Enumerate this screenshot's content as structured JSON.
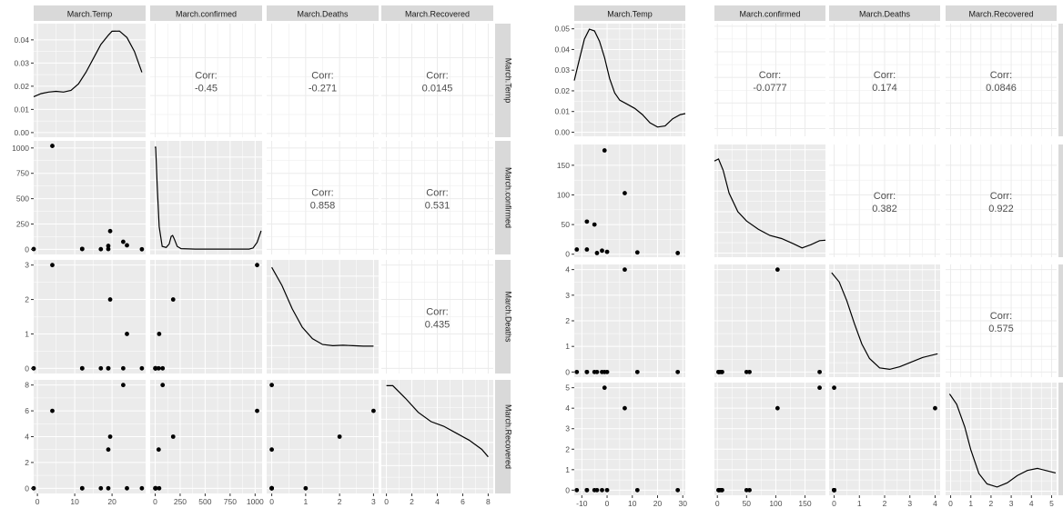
{
  "chart_data": [
    {
      "type": "scatter-matrix",
      "variables": [
        "March.Temp",
        "March.confirmed",
        "March.Deaths",
        "March.Recovered"
      ],
      "panel_bg": "#ebebeb",
      "strip_bg": "#d9d9d9",
      "grid_color": "#ffffff",
      "axes": [
        {
          "range": [
            -1,
            29
          ],
          "ticks": [
            0,
            10,
            20
          ],
          "tick_labels": [
            "0",
            "10",
            "20"
          ]
        },
        {
          "range": [
            -50,
            1070
          ],
          "ticks": [
            0,
            250,
            500,
            750,
            1000
          ],
          "tick_labels": [
            "0",
            "250",
            "500",
            "750",
            "1000"
          ]
        },
        {
          "range": [
            -0.15,
            3.15
          ],
          "ticks": [
            0,
            1,
            2,
            3
          ],
          "tick_labels": [
            "0",
            "1",
            "2",
            "3"
          ]
        },
        {
          "range": [
            -0.4,
            8.4
          ],
          "ticks": [
            0,
            2,
            4,
            6,
            8
          ],
          "tick_labels": [
            "0",
            "2",
            "4",
            "6",
            "8"
          ]
        }
      ],
      "density_ylim": [
        -0.002,
        0.047
      ],
      "density_yticks": [
        0,
        0.01,
        0.02,
        0.03,
        0.04
      ],
      "density_ytick_labels": [
        "0.00",
        "0.01",
        "0.02",
        "0.03",
        "0.04"
      ],
      "densities": [
        [
          [
            -1,
            0.0155
          ],
          [
            1,
            0.0168
          ],
          [
            3,
            0.0175
          ],
          [
            5,
            0.0178
          ],
          [
            7,
            0.0175
          ],
          [
            9,
            0.0182
          ],
          [
            11,
            0.021
          ],
          [
            13,
            0.026
          ],
          [
            15,
            0.032
          ],
          [
            17,
            0.038
          ],
          [
            19,
            0.042
          ],
          [
            20,
            0.0437
          ],
          [
            22,
            0.0438
          ],
          [
            24,
            0.041
          ],
          [
            26,
            0.035
          ],
          [
            28,
            0.026
          ]
        ],
        [
          [
            0,
            0.044
          ],
          [
            5,
            0.0445
          ],
          [
            20,
            0.028
          ],
          [
            40,
            0.01
          ],
          [
            70,
            0.0015
          ],
          [
            110,
            0.001
          ],
          [
            140,
            0.0025
          ],
          [
            160,
            0.0058
          ],
          [
            175,
            0.0062
          ],
          [
            190,
            0.0048
          ],
          [
            220,
            0.0015
          ],
          [
            260,
            0.0005
          ],
          [
            400,
            0.0003
          ],
          [
            700,
            0.0003
          ],
          [
            940,
            0.0003
          ],
          [
            980,
            0.0008
          ],
          [
            1020,
            0.0032
          ],
          [
            1060,
            0.0082
          ]
        ],
        [
          [
            0,
            0.0438
          ],
          [
            0.3,
            0.036
          ],
          [
            0.6,
            0.026
          ],
          [
            0.9,
            0.018
          ],
          [
            1.2,
            0.013
          ],
          [
            1.5,
            0.0105
          ],
          [
            1.8,
            0.01
          ],
          [
            2.1,
            0.0102
          ],
          [
            2.4,
            0.01
          ],
          [
            2.7,
            0.0098
          ],
          [
            3,
            0.0098
          ]
        ],
        [
          [
            0,
            0.0445
          ],
          [
            0.5,
            0.0445
          ],
          [
            1.5,
            0.039
          ],
          [
            2.5,
            0.033
          ],
          [
            3.5,
            0.029
          ],
          [
            4.5,
            0.027
          ],
          [
            5.5,
            0.024
          ],
          [
            6.5,
            0.021
          ],
          [
            7.5,
            0.017
          ],
          [
            8,
            0.0138
          ]
        ]
      ],
      "points": [
        {
          "v1": 28,
          "v2": 1,
          "v3": 0,
          "v4": 0
        },
        {
          "v1": 4,
          "v2": 1020,
          "v3": 3,
          "v4": 6
        },
        {
          "v1": 12,
          "v2": 5,
          "v3": 0,
          "v4": 0
        },
        {
          "v1": 17,
          "v2": 2,
          "v3": 0,
          "v4": 0
        },
        {
          "v1": 19,
          "v2": 35,
          "v3": 0,
          "v4": 3
        },
        {
          "v1": 19.5,
          "v2": 180,
          "v3": 2,
          "v4": 4
        },
        {
          "v1": 23,
          "v2": 75,
          "v3": 0,
          "v4": 8
        },
        {
          "v1": 24,
          "v2": 40,
          "v3": 1,
          "v4": 0
        },
        {
          "v1": -1,
          "v2": 3,
          "v3": 0,
          "v4": 0
        },
        {
          "v1": 12,
          "v2": 3,
          "v3": 0,
          "v4": 0
        },
        {
          "v1": 19,
          "v2": 3,
          "v3": 0,
          "v4": 0
        }
      ],
      "correlations": [
        {
          "row": 0,
          "col": 1,
          "label": "Corr:",
          "value": "-0.45"
        },
        {
          "row": 0,
          "col": 2,
          "label": "Corr:",
          "value": "-0.271"
        },
        {
          "row": 0,
          "col": 3,
          "label": "Corr:",
          "value": "0.0145"
        },
        {
          "row": 1,
          "col": 2,
          "label": "Corr:",
          "value": "0.858"
        },
        {
          "row": 1,
          "col": 3,
          "label": "Corr:",
          "value": "0.531"
        },
        {
          "row": 2,
          "col": 3,
          "label": "Corr:",
          "value": "0.435"
        }
      ]
    },
    {
      "type": "scatter-matrix",
      "variables": [
        "March.Temp",
        "March.confirmed",
        "March.Deaths",
        "March.Recovered"
      ],
      "panel_bg": "#ebebeb",
      "strip_bg": "#d9d9d9",
      "grid_color": "#ffffff",
      "axes": [
        {
          "range": [
            -13,
            31
          ],
          "ticks": [
            -10,
            0,
            10,
            20,
            30
          ],
          "tick_labels": [
            "-10",
            "0",
            "10",
            "20",
            "30"
          ]
        },
        {
          "range": [
            -5,
            185
          ],
          "ticks": [
            0,
            50,
            100,
            150
          ],
          "tick_labels": [
            "0",
            "50",
            "100",
            "150"
          ]
        },
        {
          "range": [
            -0.2,
            4.2
          ],
          "ticks": [
            0,
            1,
            2,
            3,
            4
          ],
          "tick_labels": [
            "0",
            "1",
            "2",
            "3",
            "4"
          ]
        },
        {
          "range": [
            -0.25,
            5.25
          ],
          "ticks": [
            0,
            1,
            2,
            3,
            4,
            5
          ],
          "tick_labels": [
            "0",
            "1",
            "2",
            "3",
            "4",
            "5"
          ]
        }
      ],
      "density_ylim": [
        -0.002,
        0.0525
      ],
      "density_yticks": [
        0,
        0.01,
        0.02,
        0.03,
        0.04,
        0.05
      ],
      "density_ytick_labels": [
        "0.00",
        "0.01",
        "0.02",
        "0.03",
        "0.04",
        "0.05"
      ],
      "densities": [
        [
          [
            -13,
            0.025
          ],
          [
            -11,
            0.035
          ],
          [
            -9,
            0.045
          ],
          [
            -7,
            0.0498
          ],
          [
            -5,
            0.049
          ],
          [
            -3,
            0.044
          ],
          [
            -1,
            0.036
          ],
          [
            1,
            0.026
          ],
          [
            3,
            0.019
          ],
          [
            5,
            0.0155
          ],
          [
            8,
            0.0135
          ],
          [
            11,
            0.0115
          ],
          [
            14,
            0.0085
          ],
          [
            17,
            0.0045
          ],
          [
            20,
            0.0025
          ],
          [
            23,
            0.003
          ],
          [
            26,
            0.0065
          ],
          [
            29,
            0.0085
          ],
          [
            31,
            0.009
          ]
        ],
        [
          [
            -5,
            0.0445
          ],
          [
            2,
            0.0455
          ],
          [
            10,
            0.04
          ],
          [
            20,
            0.029
          ],
          [
            35,
            0.02
          ],
          [
            50,
            0.0155
          ],
          [
            70,
            0.0115
          ],
          [
            90,
            0.0085
          ],
          [
            110,
            0.007
          ],
          [
            130,
            0.0045
          ],
          [
            145,
            0.0025
          ],
          [
            160,
            0.004
          ],
          [
            175,
            0.006
          ],
          [
            185,
            0.0062
          ]
        ],
        [
          [
            -0.1,
            0.0485
          ],
          [
            0.2,
            0.044
          ],
          [
            0.5,
            0.035
          ],
          [
            0.8,
            0.024
          ],
          [
            1.1,
            0.014
          ],
          [
            1.4,
            0.007
          ],
          [
            1.8,
            0.0025
          ],
          [
            2.2,
            0.0018
          ],
          [
            2.6,
            0.003
          ],
          [
            3,
            0.005
          ],
          [
            3.5,
            0.0075
          ],
          [
            4.1,
            0.0093
          ]
        ],
        [
          [
            -0.05,
            0.047
          ],
          [
            0.3,
            0.042
          ],
          [
            0.7,
            0.031
          ],
          [
            1,
            0.02
          ],
          [
            1.4,
            0.0085
          ],
          [
            1.8,
            0.0035
          ],
          [
            2.3,
            0.002
          ],
          [
            2.8,
            0.004
          ],
          [
            3.3,
            0.0075
          ],
          [
            3.8,
            0.01
          ],
          [
            4.3,
            0.011
          ],
          [
            4.8,
            0.0098
          ],
          [
            5.2,
            0.0088
          ]
        ]
      ],
      "points": [
        {
          "v1": -12,
          "v2": 8,
          "v3": 0,
          "v4": 0
        },
        {
          "v1": -8,
          "v2": 55,
          "v3": 0,
          "v4": 0
        },
        {
          "v1": -5,
          "v2": 50,
          "v3": 0,
          "v4": 0
        },
        {
          "v1": -4,
          "v2": 2,
          "v3": 0,
          "v4": 0
        },
        {
          "v1": -2,
          "v2": 6,
          "v3": 0,
          "v4": 0
        },
        {
          "v1": -1,
          "v2": 175,
          "v3": 0,
          "v4": 5
        },
        {
          "v1": 0,
          "v2": 4,
          "v3": 0,
          "v4": 0
        },
        {
          "v1": 7,
          "v2": 103,
          "v3": 4,
          "v4": 4
        },
        {
          "v1": 12,
          "v2": 3,
          "v3": 0,
          "v4": 0
        },
        {
          "v1": 28,
          "v2": 2,
          "v3": 0,
          "v4": 0
        },
        {
          "v1": -8,
          "v2": 8,
          "v3": 0,
          "v4": 0
        }
      ],
      "extra_pairs": [
        {
          "row": 3,
          "col": 1,
          "x": 175,
          "y": 5
        },
        {
          "row": 3,
          "col": 2,
          "x": 4,
          "y": 4
        },
        {
          "row": 3,
          "col": 2,
          "x": 0,
          "y": 5
        },
        {
          "row": 3,
          "col": 1,
          "x": 103,
          "y": 4
        },
        {
          "row": 2,
          "col": 1,
          "x": 175,
          "y": 0
        },
        {
          "row": 2,
          "col": 1,
          "x": 103,
          "y": 4
        }
      ],
      "correlations": [
        {
          "row": 0,
          "col": 1,
          "label": "Corr:",
          "value": "-0.0777"
        },
        {
          "row": 0,
          "col": 2,
          "label": "Corr:",
          "value": "0.174"
        },
        {
          "row": 0,
          "col": 3,
          "label": "Corr:",
          "value": "0.0846"
        },
        {
          "row": 1,
          "col": 2,
          "label": "Corr:",
          "value": "0.382"
        },
        {
          "row": 1,
          "col": 3,
          "label": "Corr:",
          "value": "0.922"
        },
        {
          "row": 2,
          "col": 3,
          "label": "Corr:",
          "value": "0.575"
        }
      ]
    }
  ]
}
